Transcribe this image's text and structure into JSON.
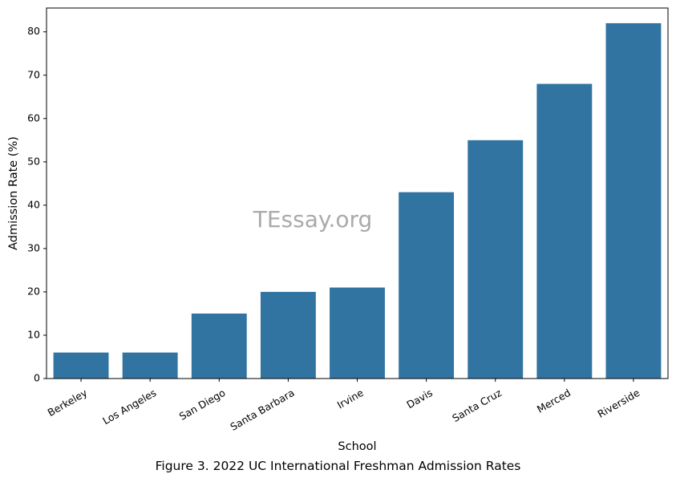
{
  "caption": "Figure 3. 2022 UC International Freshman Admission Rates",
  "watermark": "TEssay.org",
  "chart_data": {
    "type": "bar",
    "categories": [
      "Berkeley",
      "Los Angeles",
      "San Diego",
      "Santa Barbara",
      "Irvine",
      "Davis",
      "Santa Cruz",
      "Merced",
      "Riverside"
    ],
    "values": [
      6,
      6,
      15,
      20,
      21,
      43,
      55,
      68,
      82
    ],
    "title": "",
    "xlabel": "School",
    "ylabel": "Admission Rate (%)",
    "ylim": [
      0,
      85.5
    ],
    "yticks": [
      0,
      10,
      20,
      30,
      40,
      50,
      60,
      70,
      80
    ],
    "grid": false,
    "bar_color": "#3274a1"
  }
}
